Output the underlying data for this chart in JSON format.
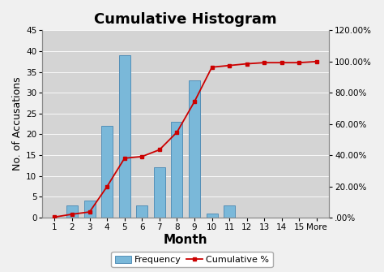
{
  "title": "Cumulative Histogram",
  "xlabel": "Month",
  "ylabel_left": "No. of Accusations",
  "categories": [
    "1",
    "2",
    "3",
    "4",
    "5",
    "6",
    "7",
    "8",
    "9",
    "10",
    "11",
    "12",
    "13",
    "14",
    "15",
    "More"
  ],
  "frequency": [
    0,
    3,
    4,
    22,
    39,
    3,
    12,
    23,
    33,
    1,
    3,
    0,
    0,
    0,
    0,
    0
  ],
  "cumulative_pct": [
    0.36,
    2.17,
    3.62,
    19.93,
    38.04,
    39.13,
    43.48,
    54.71,
    74.28,
    96.38,
    97.46,
    98.55,
    99.28,
    99.28,
    99.28,
    100.0
  ],
  "bar_color": "#7ab8d9",
  "bar_edge_color": "#5590b8",
  "line_color": "#cc0000",
  "background_color": "#d4d4d4",
  "fig_background": "#f0f0f0",
  "ylim_left": [
    0,
    45
  ],
  "ylim_right": [
    0,
    120
  ],
  "yticks_left": [
    0,
    5,
    10,
    15,
    20,
    25,
    30,
    35,
    40,
    45
  ],
  "yticks_right": [
    0.0,
    20.0,
    40.0,
    60.0,
    80.0,
    100.0,
    120.0
  ],
  "ytick_labels_right": [
    ".00%",
    "20.00%",
    "40.00%",
    "60.00%",
    "80.00%",
    "100.00%",
    "120.00%"
  ],
  "title_fontsize": 13,
  "ylabel_fontsize": 9,
  "xlabel_fontsize": 11,
  "tick_fontsize": 7.5,
  "legend_fontsize": 8
}
